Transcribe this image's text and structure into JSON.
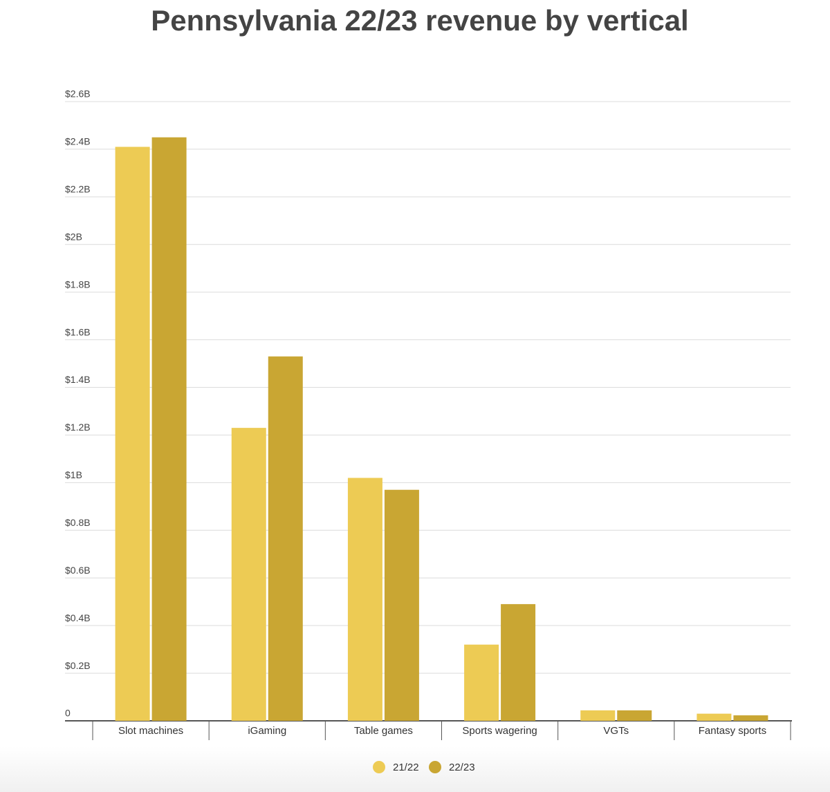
{
  "chart_data": {
    "type": "bar",
    "title": "Pennsylvania 22/23 revenue by vertical",
    "categories": [
      "Slot machines",
      "iGaming",
      "Table games",
      "Sports wagering",
      "VGTs",
      "Fantasy sports"
    ],
    "series": [
      {
        "name": "21/22",
        "color": "#edcb54",
        "values": [
          2.41,
          1.23,
          1.02,
          0.32,
          0.044,
          0.03
        ]
      },
      {
        "name": "22/23",
        "color": "#c9a633",
        "values": [
          2.45,
          1.53,
          0.97,
          0.49,
          0.044,
          0.023
        ]
      }
    ],
    "ylim": [
      0,
      2.6
    ],
    "yticks": [
      0,
      {
        "value": 0.2,
        "label": "$0.2B"
      },
      {
        "value": 0.4,
        "label": "$0.4B"
      },
      {
        "value": 0.6,
        "label": "$0.6B"
      },
      {
        "value": 0.8,
        "label": "$0.8B"
      },
      {
        "value": 1,
        "label": "$1B"
      },
      {
        "value": 1.2,
        "label": "$1.2B"
      },
      {
        "value": 1.4,
        "label": "$1.4B"
      },
      {
        "value": 1.6,
        "label": "$1.6B"
      },
      {
        "value": 1.8,
        "label": "$1.8B"
      },
      {
        "value": 2,
        "label": "$2B"
      },
      {
        "value": 2.2,
        "label": "$2.2B"
      },
      {
        "value": 2.4,
        "label": "$2.4B"
      },
      {
        "value": 2.6,
        "label": "$2.6B"
      }
    ],
    "grid": true
  }
}
